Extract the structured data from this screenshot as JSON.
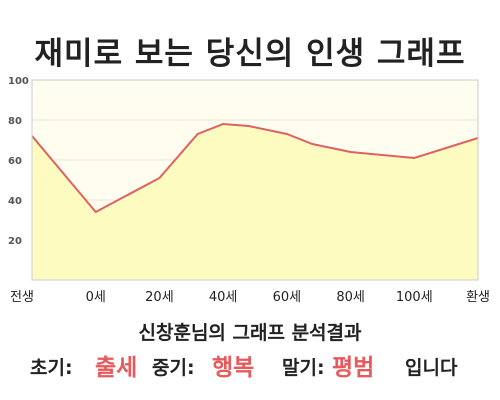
{
  "header": {
    "title": "재미로 보는 당신의 인생 그래프"
  },
  "chart_data": {
    "type": "area",
    "title": "재미로 보는 당신의 인생 그래프",
    "categories": [
      "전생",
      "0세",
      "20세",
      "40세",
      "60세",
      "80세",
      "100세",
      "환생"
    ],
    "x": [
      0,
      1,
      2,
      2.6,
      3,
      3.4,
      4,
      4.4,
      5,
      6,
      7
    ],
    "y": [
      72,
      34,
      51,
      73,
      78,
      77,
      73,
      68,
      64,
      61,
      71
    ],
    "ylim": [
      0,
      100
    ],
    "yticks": [
      20,
      40,
      60,
      80,
      100
    ],
    "grid": true,
    "colors": {
      "line": "#e06161",
      "fill": "#fdfbc0",
      "background": "#fefdf0"
    }
  },
  "summary": {
    "subtitle": "신창훈님의 그래프 분석결과",
    "early_label": "초기:",
    "early_value": "출세",
    "mid_label": "중기:",
    "mid_value": "행복",
    "late_label": "말기:",
    "late_value": "평범",
    "ending": "입니다"
  }
}
